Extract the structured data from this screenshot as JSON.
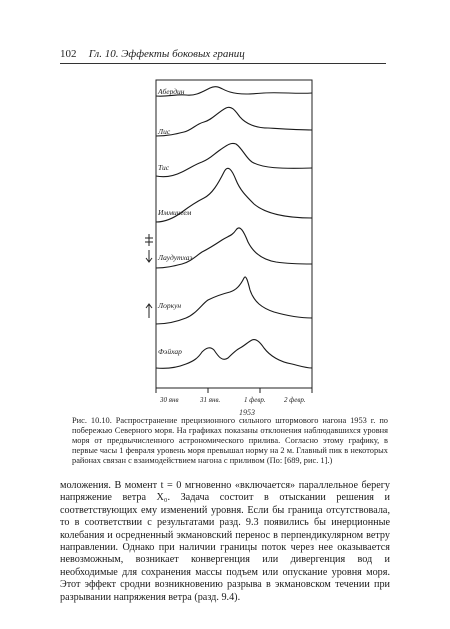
{
  "header": {
    "page_number": "102",
    "running_title": "Гл. 10. Эффекты боковых границ"
  },
  "figure": {
    "stations": [
      "Абердин",
      "Лис",
      "Тис",
      "Иммингем",
      "Лаудутхаз",
      "Лоркун",
      "Фэйхар"
    ],
    "x_ticks": [
      "30 янв",
      "31 янв.",
      "1 февр.",
      "2 февр."
    ],
    "year": "1953"
  },
  "caption": {
    "text": "Рис. 10.10. Распространение прецизионного сильного штормового нагона 1953 г. по побережью Северного моря. На графиках показаны отклонения наблюдавшихся уровня моря от предвычисленного астрономического прилива. Согласно этому графику, в первые часы 1 февраля уровень моря превышал норму на 2 м. Главный пик в некоторых районах связан с взаимодействием нагона с приливом (По: [689, рис. 1].)"
  },
  "body": {
    "text": "моложения. В момент t = 0 мгновенно «включается» параллельное берегу напряжение ветра X₀. Задача состоит в отыскании решения и соответствующих ему изменений уровня. Если бы граница отсутствовала, то в соответствии с результатами разд. 9.3 появились бы инерционные колебания и осредненный экмановский перенос в перпендикулярном ветру направлении. Однако при наличии границы поток через нее оказывается невозможным, возникает конвергенция или дивергенция вод и необходимые для сохранения массы подъем или опускание уровня моря. Этот эффект сродни возникновению разрыва в экмановском течении при разрывании напряжения ветра (разд. 9.4)."
  }
}
